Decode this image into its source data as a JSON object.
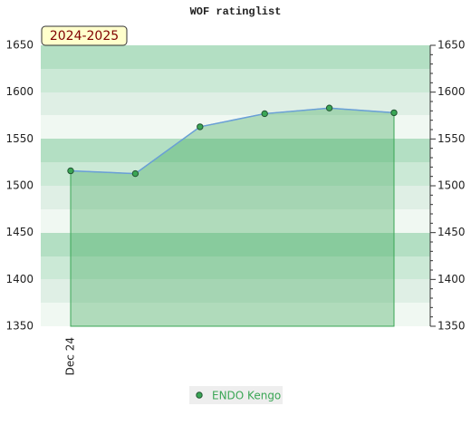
{
  "chart_data": {
    "type": "area",
    "title": "WOF ratinglist",
    "annotation": "2024-2025",
    "categories": [
      "Dec 24",
      null,
      null,
      null,
      null,
      null
    ],
    "series": [
      {
        "name": "ENDO Kengo",
        "color": "#3aa655",
        "line_color": "#6a9fd8",
        "values": [
          1516,
          1513,
          1563,
          1577,
          1583,
          1578
        ]
      }
    ],
    "ylim": [
      1350,
      1650
    ],
    "yticks": [
      1350,
      1400,
      1450,
      1500,
      1550,
      1600,
      1650
    ],
    "y2lim": [
      1350,
      1650
    ],
    "y2ticks": [
      1350,
      1400,
      1450,
      1500,
      1550,
      1600,
      1650
    ],
    "grid": true,
    "legend": "bottom"
  }
}
